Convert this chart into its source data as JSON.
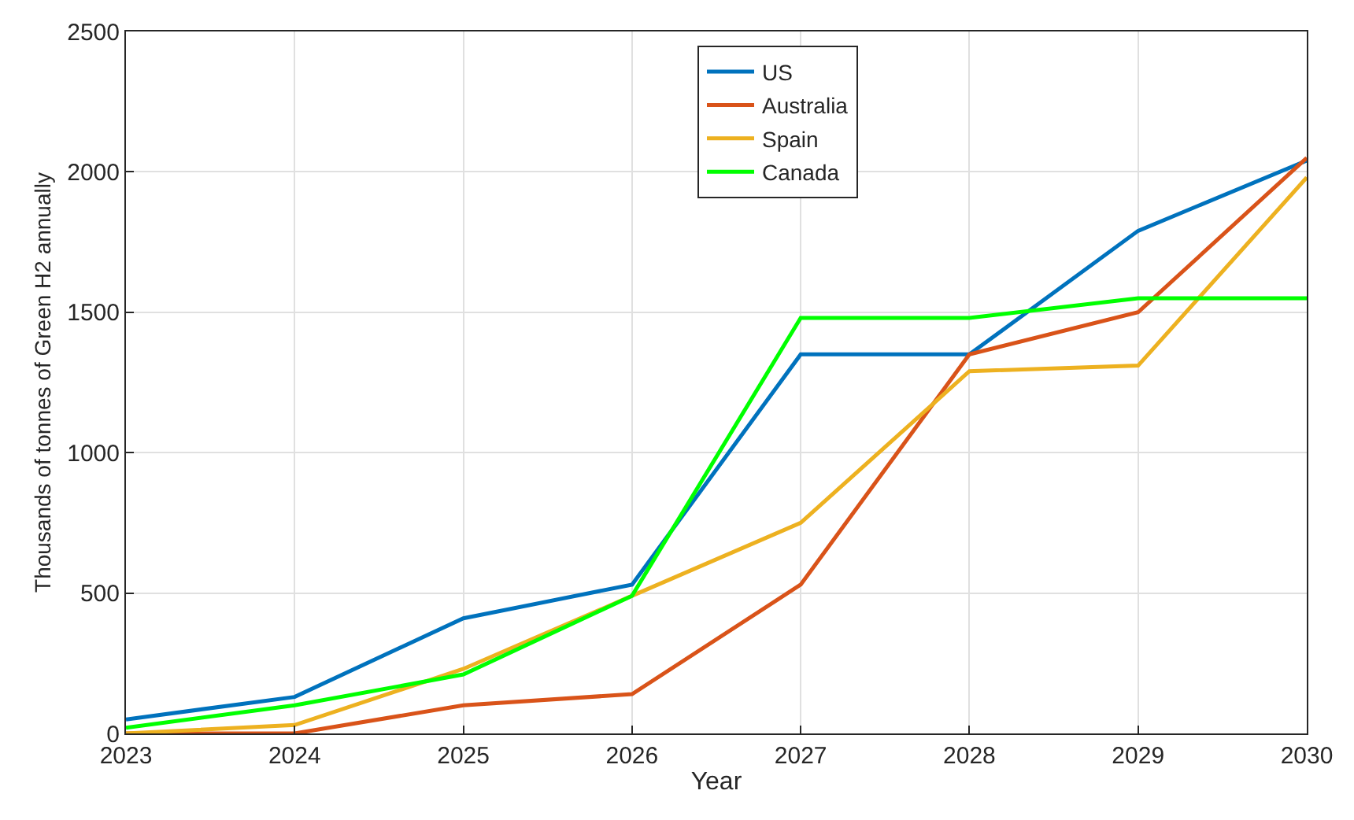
{
  "chart_data": {
    "type": "line",
    "xlabel": "Year",
    "ylabel": "Thousands of tonnes of Green H2 annually",
    "x": [
      2023,
      2024,
      2025,
      2026,
      2027,
      2028,
      2029,
      2030
    ],
    "series": [
      {
        "name": "US",
        "color": "#0072bd",
        "values": [
          50,
          130,
          410,
          530,
          1350,
          1350,
          1790,
          2040
        ]
      },
      {
        "name": "Australia",
        "color": "#d95319",
        "values": [
          0,
          0,
          100,
          140,
          530,
          1350,
          1500,
          2050
        ]
      },
      {
        "name": "Spain",
        "color": "#edb120",
        "values": [
          0,
          30,
          230,
          490,
          750,
          1290,
          1310,
          1980
        ]
      },
      {
        "name": "Canada",
        "color": "#00ff00",
        "values": [
          20,
          100,
          210,
          490,
          1480,
          1480,
          1550,
          1550
        ]
      }
    ],
    "xlim": [
      2023,
      2030
    ],
    "xticks": [
      2023,
      2024,
      2025,
      2026,
      2027,
      2028,
      2029,
      2030
    ],
    "ylim": [
      0,
      2500
    ],
    "yticks": [
      0,
      500,
      1000,
      1500,
      2000,
      2500
    ],
    "grid": true,
    "legend": "top right",
    "marker": "none",
    "line_style": "solid"
  }
}
